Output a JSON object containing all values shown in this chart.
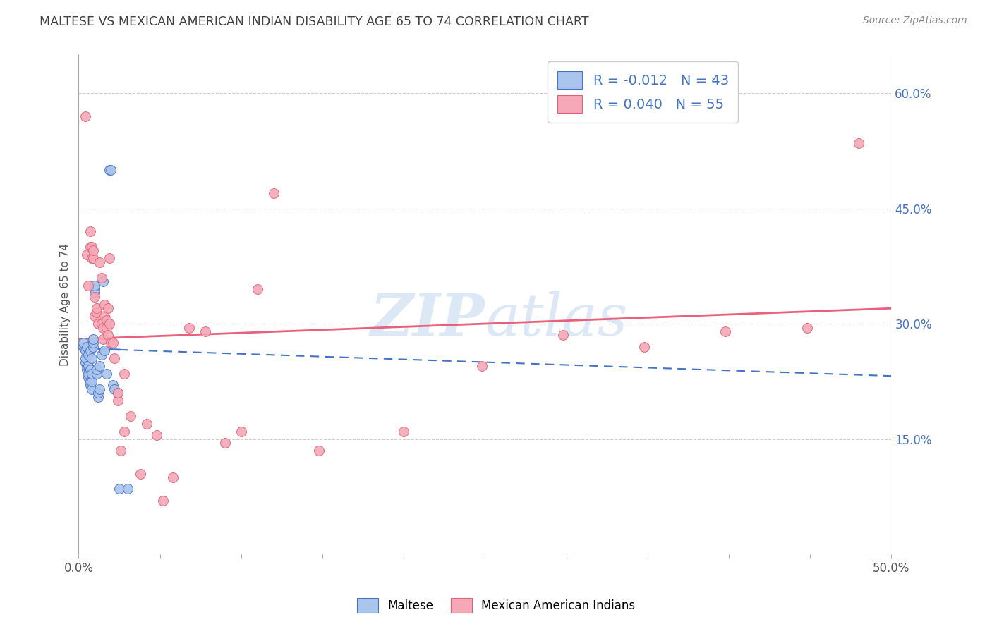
{
  "title": "MALTESE VS MEXICAN AMERICAN INDIAN DISABILITY AGE 65 TO 74 CORRELATION CHART",
  "source": "Source: ZipAtlas.com",
  "ylabel": "Disability Age 65 to 74",
  "xlim": [
    0.0,
    0.5
  ],
  "ylim": [
    0.0,
    0.65
  ],
  "xticks": [
    0.0,
    0.05,
    0.1,
    0.15,
    0.2,
    0.25,
    0.3,
    0.35,
    0.4,
    0.45,
    0.5
  ],
  "xtick_labels": [
    "0.0%",
    "",
    "",
    "",
    "",
    "",
    "",
    "",
    "",
    "",
    "50.0%"
  ],
  "ytick_vals": [
    0.15,
    0.3,
    0.45,
    0.6
  ],
  "ytick_labels": [
    "15.0%",
    "30.0%",
    "45.0%",
    "60.0%"
  ],
  "legend_r_maltese": "-0.012",
  "legend_n_maltese": "43",
  "legend_r_mexican": "0.040",
  "legend_n_mexican": "55",
  "maltese_color": "#aac4ed",
  "mexican_color": "#f4a8b8",
  "maltese_edge_color": "#4472c4",
  "mexican_edge_color": "#e06070",
  "maltese_line_color": "#4472c4",
  "mexican_line_color": "#e8607a",
  "background_color": "#ffffff",
  "title_color": "#404040",
  "source_color": "#888888",
  "watermark_color": "#dce8f5",
  "maltese_x": [
    0.003,
    0.003,
    0.004,
    0.004,
    0.004,
    0.005,
    0.005,
    0.005,
    0.006,
    0.006,
    0.006,
    0.006,
    0.007,
    0.007,
    0.007,
    0.007,
    0.008,
    0.008,
    0.008,
    0.008,
    0.009,
    0.009,
    0.009,
    0.01,
    0.01,
    0.01,
    0.011,
    0.011,
    0.012,
    0.012,
    0.013,
    0.013,
    0.014,
    0.015,
    0.016,
    0.017,
    0.019,
    0.02,
    0.021,
    0.022,
    0.024,
    0.025,
    0.03
  ],
  "maltese_y": [
    0.27,
    0.275,
    0.25,
    0.255,
    0.265,
    0.24,
    0.245,
    0.27,
    0.23,
    0.235,
    0.245,
    0.26,
    0.22,
    0.225,
    0.24,
    0.265,
    0.215,
    0.225,
    0.235,
    0.255,
    0.27,
    0.275,
    0.28,
    0.34,
    0.345,
    0.35,
    0.235,
    0.24,
    0.205,
    0.21,
    0.215,
    0.245,
    0.26,
    0.355,
    0.265,
    0.235,
    0.5,
    0.5,
    0.22,
    0.215,
    0.21,
    0.085,
    0.085
  ],
  "mexican_x": [
    0.004,
    0.005,
    0.006,
    0.007,
    0.007,
    0.008,
    0.008,
    0.009,
    0.009,
    0.01,
    0.01,
    0.011,
    0.011,
    0.012,
    0.013,
    0.014,
    0.014,
    0.015,
    0.015,
    0.016,
    0.016,
    0.017,
    0.017,
    0.018,
    0.018,
    0.019,
    0.019,
    0.02,
    0.021,
    0.022,
    0.024,
    0.024,
    0.026,
    0.028,
    0.028,
    0.032,
    0.038,
    0.042,
    0.048,
    0.052,
    0.058,
    0.068,
    0.078,
    0.09,
    0.1,
    0.11,
    0.12,
    0.148,
    0.2,
    0.248,
    0.298,
    0.348,
    0.398,
    0.448,
    0.48
  ],
  "mexican_y": [
    0.57,
    0.39,
    0.35,
    0.4,
    0.42,
    0.385,
    0.4,
    0.385,
    0.395,
    0.31,
    0.335,
    0.315,
    0.32,
    0.3,
    0.38,
    0.3,
    0.36,
    0.28,
    0.295,
    0.31,
    0.325,
    0.295,
    0.305,
    0.285,
    0.32,
    0.3,
    0.385,
    0.275,
    0.275,
    0.255,
    0.2,
    0.21,
    0.135,
    0.16,
    0.235,
    0.18,
    0.105,
    0.17,
    0.155,
    0.07,
    0.1,
    0.295,
    0.29,
    0.145,
    0.16,
    0.345,
    0.47,
    0.135,
    0.16,
    0.245,
    0.285,
    0.27,
    0.29,
    0.295,
    0.535
  ],
  "trend_maltese_x0": 0.0,
  "trend_maltese_y0": 0.268,
  "trend_maltese_x1": 0.5,
  "trend_maltese_y1": 0.232,
  "trend_mexican_x0": 0.0,
  "trend_mexican_y0": 0.28,
  "trend_mexican_x1": 0.5,
  "trend_mexican_y1": 0.32
}
